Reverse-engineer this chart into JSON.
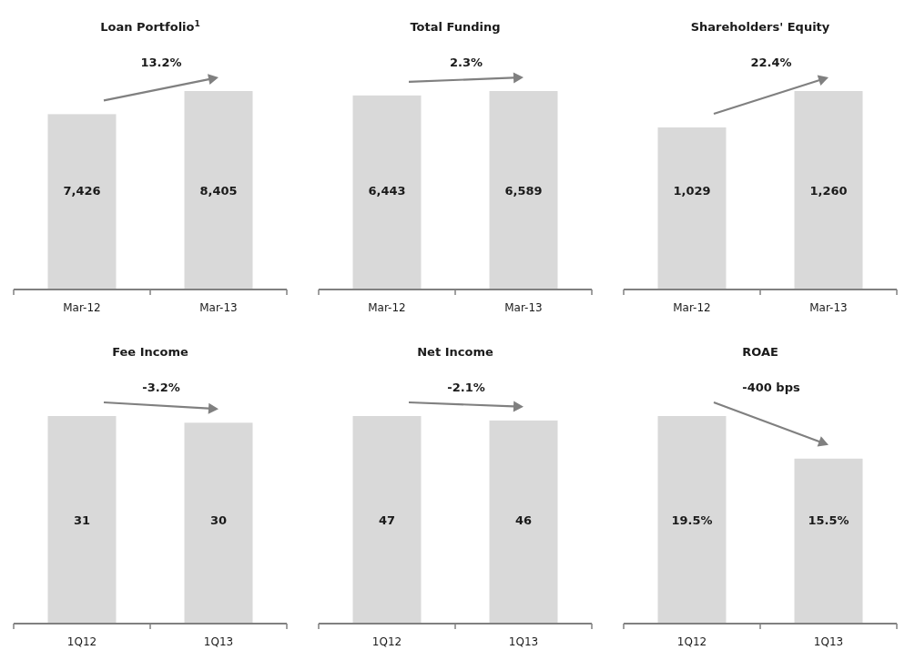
{
  "chart_data": [
    {
      "type": "bar",
      "title": "Loan Portfolio$^{1}$",
      "categories": [
        "Mar-12",
        "Mar-13"
      ],
      "values": [
        7426,
        8405
      ],
      "color": "#d9d9d9",
      "data_labels": true,
      "value_labels": [
        "7,426",
        "8,405"
      ],
      "annotations": [
        "13.2%"
      ]
    },
    {
      "type": "bar",
      "title": "Total Funding",
      "categories": [
        "Mar-12",
        "Mar-13"
      ],
      "values": [
        6443,
        6589
      ],
      "color": "#d9d9d9",
      "data_labels": true,
      "value_labels": [
        "6,443",
        "6,589"
      ],
      "annotations": [
        "2.3%"
      ]
    },
    {
      "type": "bar",
      "title": "Shareholders' Equity",
      "categories": [
        "Mar-12",
        "Mar-13"
      ],
      "values": [
        1029,
        1260
      ],
      "color": "#d9d9d9",
      "data_labels": true,
      "value_labels": [
        "1,029",
        "1,260"
      ],
      "annotations": [
        "22.4%"
      ]
    },
    {
      "type": "bar",
      "title": "Fee Income",
      "categories": [
        "1Q12",
        "1Q13"
      ],
      "values": [
        31,
        30
      ],
      "color": "#d9d9d9",
      "data_labels": true,
      "annotations": [
        "-3.2%"
      ]
    },
    {
      "type": "bar",
      "title": "Net Income",
      "categories": [
        "1Q12",
        "1Q13"
      ],
      "values": [
        47,
        46
      ],
      "color": "#d9d9d9",
      "data_labels": true,
      "annotations": [
        "-2.1%"
      ]
    },
    {
      "type": "bar",
      "title": "ROAE",
      "categories": [
        "1Q12",
        "1Q13"
      ],
      "values": [
        19.5,
        15.5
      ],
      "color": "#d9d9d9",
      "data_labels": true,
      "value_labels": [
        "19.5%",
        "15.5%"
      ],
      "annotations": [
        "-400 bps"
      ]
    }
  ]
}
